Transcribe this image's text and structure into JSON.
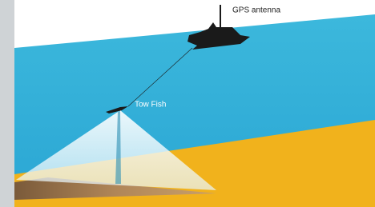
{
  "labels": {
    "gps_antenna": "GPS antenna",
    "tow_fish": "Tow Fish"
  }
}
